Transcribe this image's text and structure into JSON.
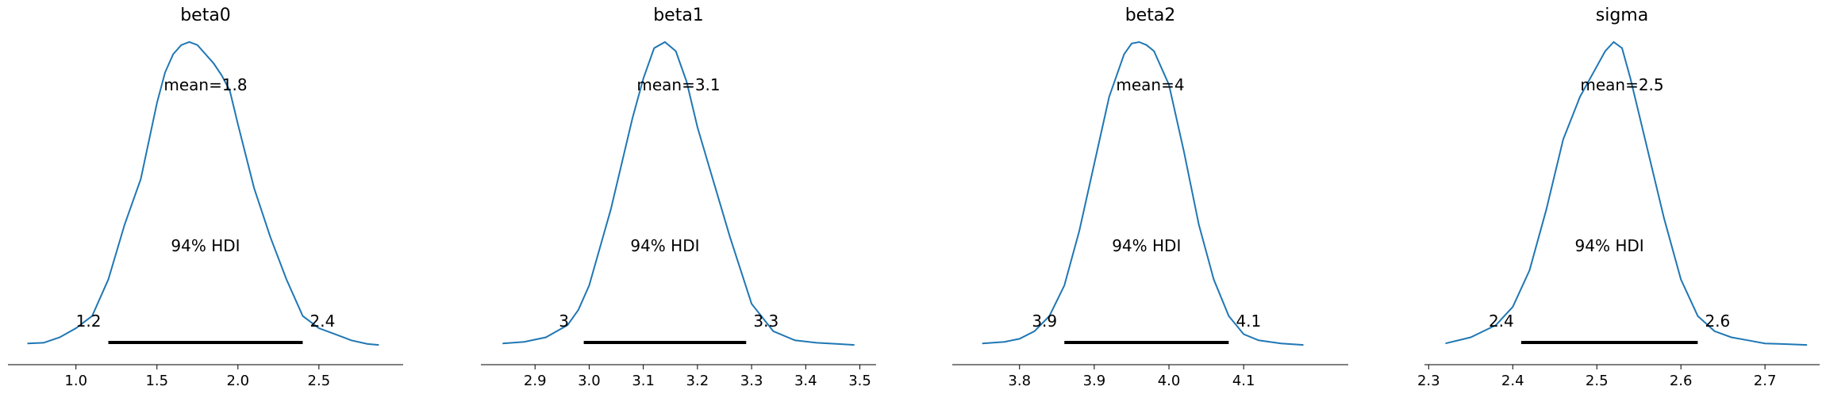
{
  "chart_data": [
    {
      "type": "line",
      "title": "beta0",
      "mean_label": "mean=1.8",
      "hdi_label": "94% HDI",
      "hdi": [
        1.2,
        2.4
      ],
      "hdi_low_label": "1.2",
      "hdi_high_label": "2.4",
      "xlim": [
        0.58,
        3.02
      ],
      "ticks": [
        1.0,
        1.5,
        2.0,
        2.5
      ],
      "tick_labels": [
        "1.0",
        "1.5",
        "2.0",
        "2.5"
      ],
      "color": "#1f77b4",
      "x": [
        0.7,
        0.8,
        0.9,
        1.0,
        1.1,
        1.2,
        1.3,
        1.4,
        1.5,
        1.55,
        1.6,
        1.65,
        1.7,
        1.75,
        1.8,
        1.85,
        1.9,
        1.95,
        2.0,
        2.1,
        2.2,
        2.3,
        2.4,
        2.5,
        2.6,
        2.7,
        2.8,
        2.87
      ],
      "y": [
        0.01,
        0.012,
        0.03,
        0.06,
        0.1,
        0.22,
        0.4,
        0.55,
        0.8,
        0.9,
        0.96,
        0.99,
        1.0,
        0.99,
        0.96,
        0.93,
        0.89,
        0.84,
        0.73,
        0.52,
        0.36,
        0.22,
        0.1,
        0.06,
        0.04,
        0.02,
        0.008,
        0.005
      ]
    },
    {
      "type": "line",
      "title": "beta1",
      "mean_label": "mean=3.1",
      "hdi_label": "94% HDI",
      "hdi": [
        2.99,
        3.29
      ],
      "hdi_low_label": "3",
      "hdi_high_label": "3.3",
      "xlim": [
        2.8,
        3.53
      ],
      "ticks": [
        2.9,
        3.0,
        3.1,
        3.2,
        3.3,
        3.4,
        3.5
      ],
      "tick_labels": [
        "2.9",
        "3.0",
        "3.1",
        "3.2",
        "3.3",
        "3.4",
        "3.5"
      ],
      "color": "#1f77b4",
      "x": [
        2.84,
        2.88,
        2.92,
        2.96,
        2.98,
        3.0,
        3.04,
        3.08,
        3.1,
        3.12,
        3.14,
        3.16,
        3.18,
        3.2,
        3.22,
        3.26,
        3.3,
        3.34,
        3.38,
        3.42,
        3.46,
        3.49
      ],
      "y": [
        0.01,
        0.015,
        0.03,
        0.07,
        0.12,
        0.2,
        0.45,
        0.75,
        0.88,
        0.98,
        1.0,
        0.97,
        0.87,
        0.72,
        0.6,
        0.36,
        0.14,
        0.05,
        0.02,
        0.012,
        0.008,
        0.005
      ]
    },
    {
      "type": "line",
      "title": "beta2",
      "mean_label": "mean=4",
      "hdi_label": "94% HDI",
      "hdi": [
        3.86,
        4.08
      ],
      "hdi_low_label": "3.9",
      "hdi_high_label": "4.1",
      "xlim": [
        3.71,
        4.24
      ],
      "ticks": [
        3.8,
        3.9,
        4.0,
        4.1
      ],
      "tick_labels": [
        "3.8",
        "3.9",
        "4.0",
        "4.1"
      ],
      "color": "#1f77b4",
      "x": [
        3.75,
        3.78,
        3.8,
        3.82,
        3.84,
        3.86,
        3.88,
        3.9,
        3.92,
        3.94,
        3.95,
        3.96,
        3.97,
        3.98,
        4.0,
        4.02,
        4.04,
        4.06,
        4.08,
        4.1,
        4.12,
        4.15,
        4.18
      ],
      "y": [
        0.01,
        0.015,
        0.025,
        0.05,
        0.1,
        0.2,
        0.38,
        0.6,
        0.82,
        0.96,
        0.995,
        1.0,
        0.99,
        0.97,
        0.86,
        0.64,
        0.4,
        0.22,
        0.1,
        0.04,
        0.02,
        0.01,
        0.005
      ]
    },
    {
      "type": "line",
      "title": "sigma",
      "mean_label": "mean=2.5",
      "hdi_label": "94% HDI",
      "hdi": [
        2.41,
        2.62
      ],
      "hdi_low_label": "2.4",
      "hdi_high_label": "2.6",
      "xlim": [
        2.295,
        2.765
      ],
      "ticks": [
        2.3,
        2.4,
        2.5,
        2.6,
        2.7
      ],
      "tick_labels": [
        "2.3",
        "2.4",
        "2.5",
        "2.6",
        "2.7"
      ],
      "color": "#1f77b4",
      "x": [
        2.32,
        2.35,
        2.38,
        2.4,
        2.42,
        2.44,
        2.46,
        2.48,
        2.5,
        2.51,
        2.52,
        2.53,
        2.54,
        2.56,
        2.58,
        2.6,
        2.62,
        2.64,
        2.66,
        2.68,
        2.7,
        2.72,
        2.75
      ],
      "y": [
        0.01,
        0.03,
        0.07,
        0.13,
        0.25,
        0.45,
        0.68,
        0.82,
        0.92,
        0.97,
        1.0,
        0.98,
        0.88,
        0.65,
        0.42,
        0.22,
        0.1,
        0.05,
        0.03,
        0.02,
        0.01,
        0.008,
        0.005
      ]
    }
  ]
}
